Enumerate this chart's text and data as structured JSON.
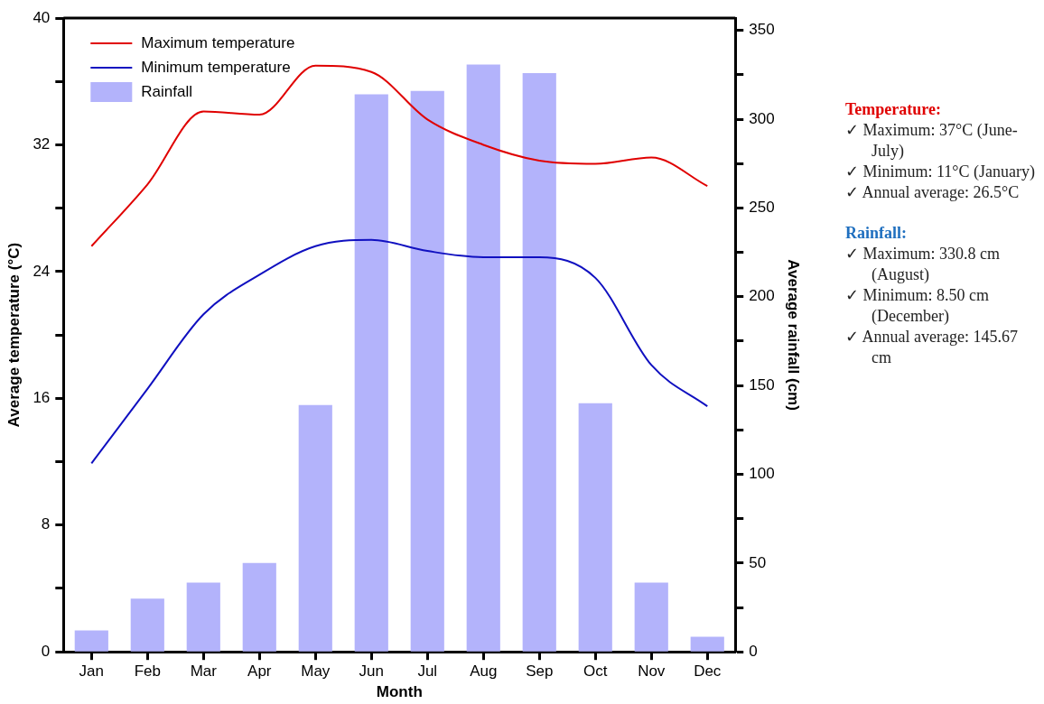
{
  "chart_data": {
    "type": "bar",
    "xlabel": "Month",
    "ylabel": "Average temperature (°C)",
    "y2label": "Average rainfall (cm)",
    "categories": [
      "Jan",
      "Feb",
      "Mar",
      "Apr",
      "May",
      "Jun",
      "Jul",
      "Aug",
      "Sep",
      "Oct",
      "Nov",
      "Dec"
    ],
    "series": [
      {
        "name": "Maximum temperature",
        "type": "line",
        "color": "#e00000",
        "values": [
          25.6,
          29.5,
          34.1,
          33.9,
          37.0,
          36.6,
          33.6,
          32.0,
          31.0,
          30.8,
          31.2,
          29.4
        ]
      },
      {
        "name": "Minimum temperature",
        "type": "line",
        "color": "#1010c0",
        "values": [
          11.9,
          16.6,
          21.3,
          23.8,
          25.6,
          26.0,
          25.3,
          24.9,
          24.9,
          23.6,
          18.1,
          15.5
        ]
      },
      {
        "name": "Rainfall",
        "axis": "y2",
        "color": "#b3b3fb",
        "values": [
          12,
          30,
          39,
          50,
          139,
          314,
          316,
          330.8,
          326,
          140,
          39,
          8.5
        ]
      }
    ],
    "ylim": [
      0,
      40
    ],
    "yticks": [
      0,
      {
        "value": 4,
        "label": null
      },
      8,
      {
        "value": 12,
        "label": null
      },
      16,
      {
        "value": 20,
        "label": null
      },
      24,
      {
        "value": 28,
        "label": null
      },
      32,
      {
        "value": 36,
        "label": null
      },
      40
    ],
    "y2lim": [
      0,
      357
    ],
    "y2ticks": [
      0,
      {
        "value": 25,
        "label": null
      },
      50,
      {
        "value": 75,
        "label": null
      },
      100,
      {
        "value": 125,
        "label": null
      },
      150,
      {
        "value": 175,
        "label": null
      },
      200,
      {
        "value": 225,
        "label": null
      },
      250,
      {
        "value": 275,
        "label": null
      },
      300,
      {
        "value": 325,
        "label": null
      },
      350
    ],
    "legend": "top left",
    "marker": "none",
    "line_style": "solid",
    "annotations": [
      "Temperature:",
      "✓ Maximum: 37°C (June-July)",
      "✓ Minimum: 11°C (January)",
      "✓ Annual average: 26.5°C",
      "Rainfall:",
      "✓ Maximum: 330.8 cm (August)",
      "✓ Minimum: 8.50 cm (December)",
      "✓ Annual average: 145.67 cm"
    ]
  }
}
